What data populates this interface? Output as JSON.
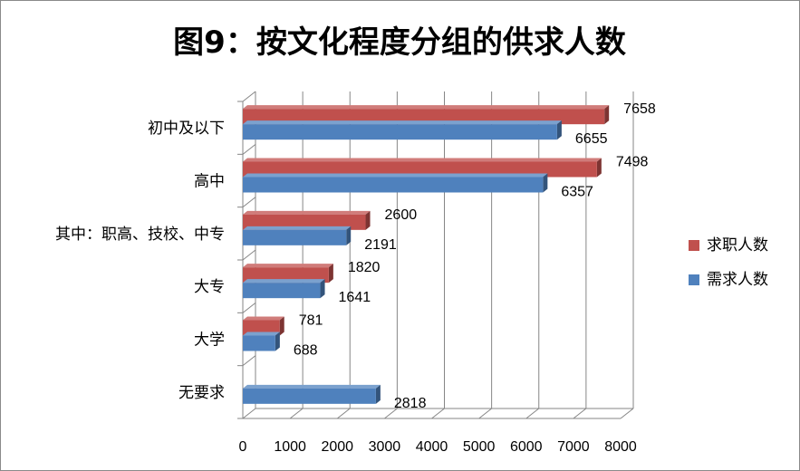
{
  "chart_data": {
    "type": "bar",
    "orientation": "horizontal",
    "title": "图9：按文化程度分组的供求人数",
    "categories": [
      "初中及以下",
      "高中",
      "其中：职高、技校、中专",
      "大专",
      "大学",
      "无要求"
    ],
    "series": [
      {
        "name": "求职人数",
        "color": "#c0504d",
        "values": [
          7658,
          7498,
          2600,
          1820,
          781,
          null
        ]
      },
      {
        "name": "需求人数",
        "color": "#4f81bd",
        "values": [
          6655,
          6357,
          2191,
          1641,
          688,
          2818
        ]
      }
    ],
    "xlim": [
      0,
      8000
    ],
    "xticks": [
      "0",
      "1000",
      "2000",
      "3000",
      "4000",
      "5000",
      "6000",
      "7000",
      "8000"
    ],
    "grid": true,
    "legend": "right",
    "style": "3d"
  }
}
